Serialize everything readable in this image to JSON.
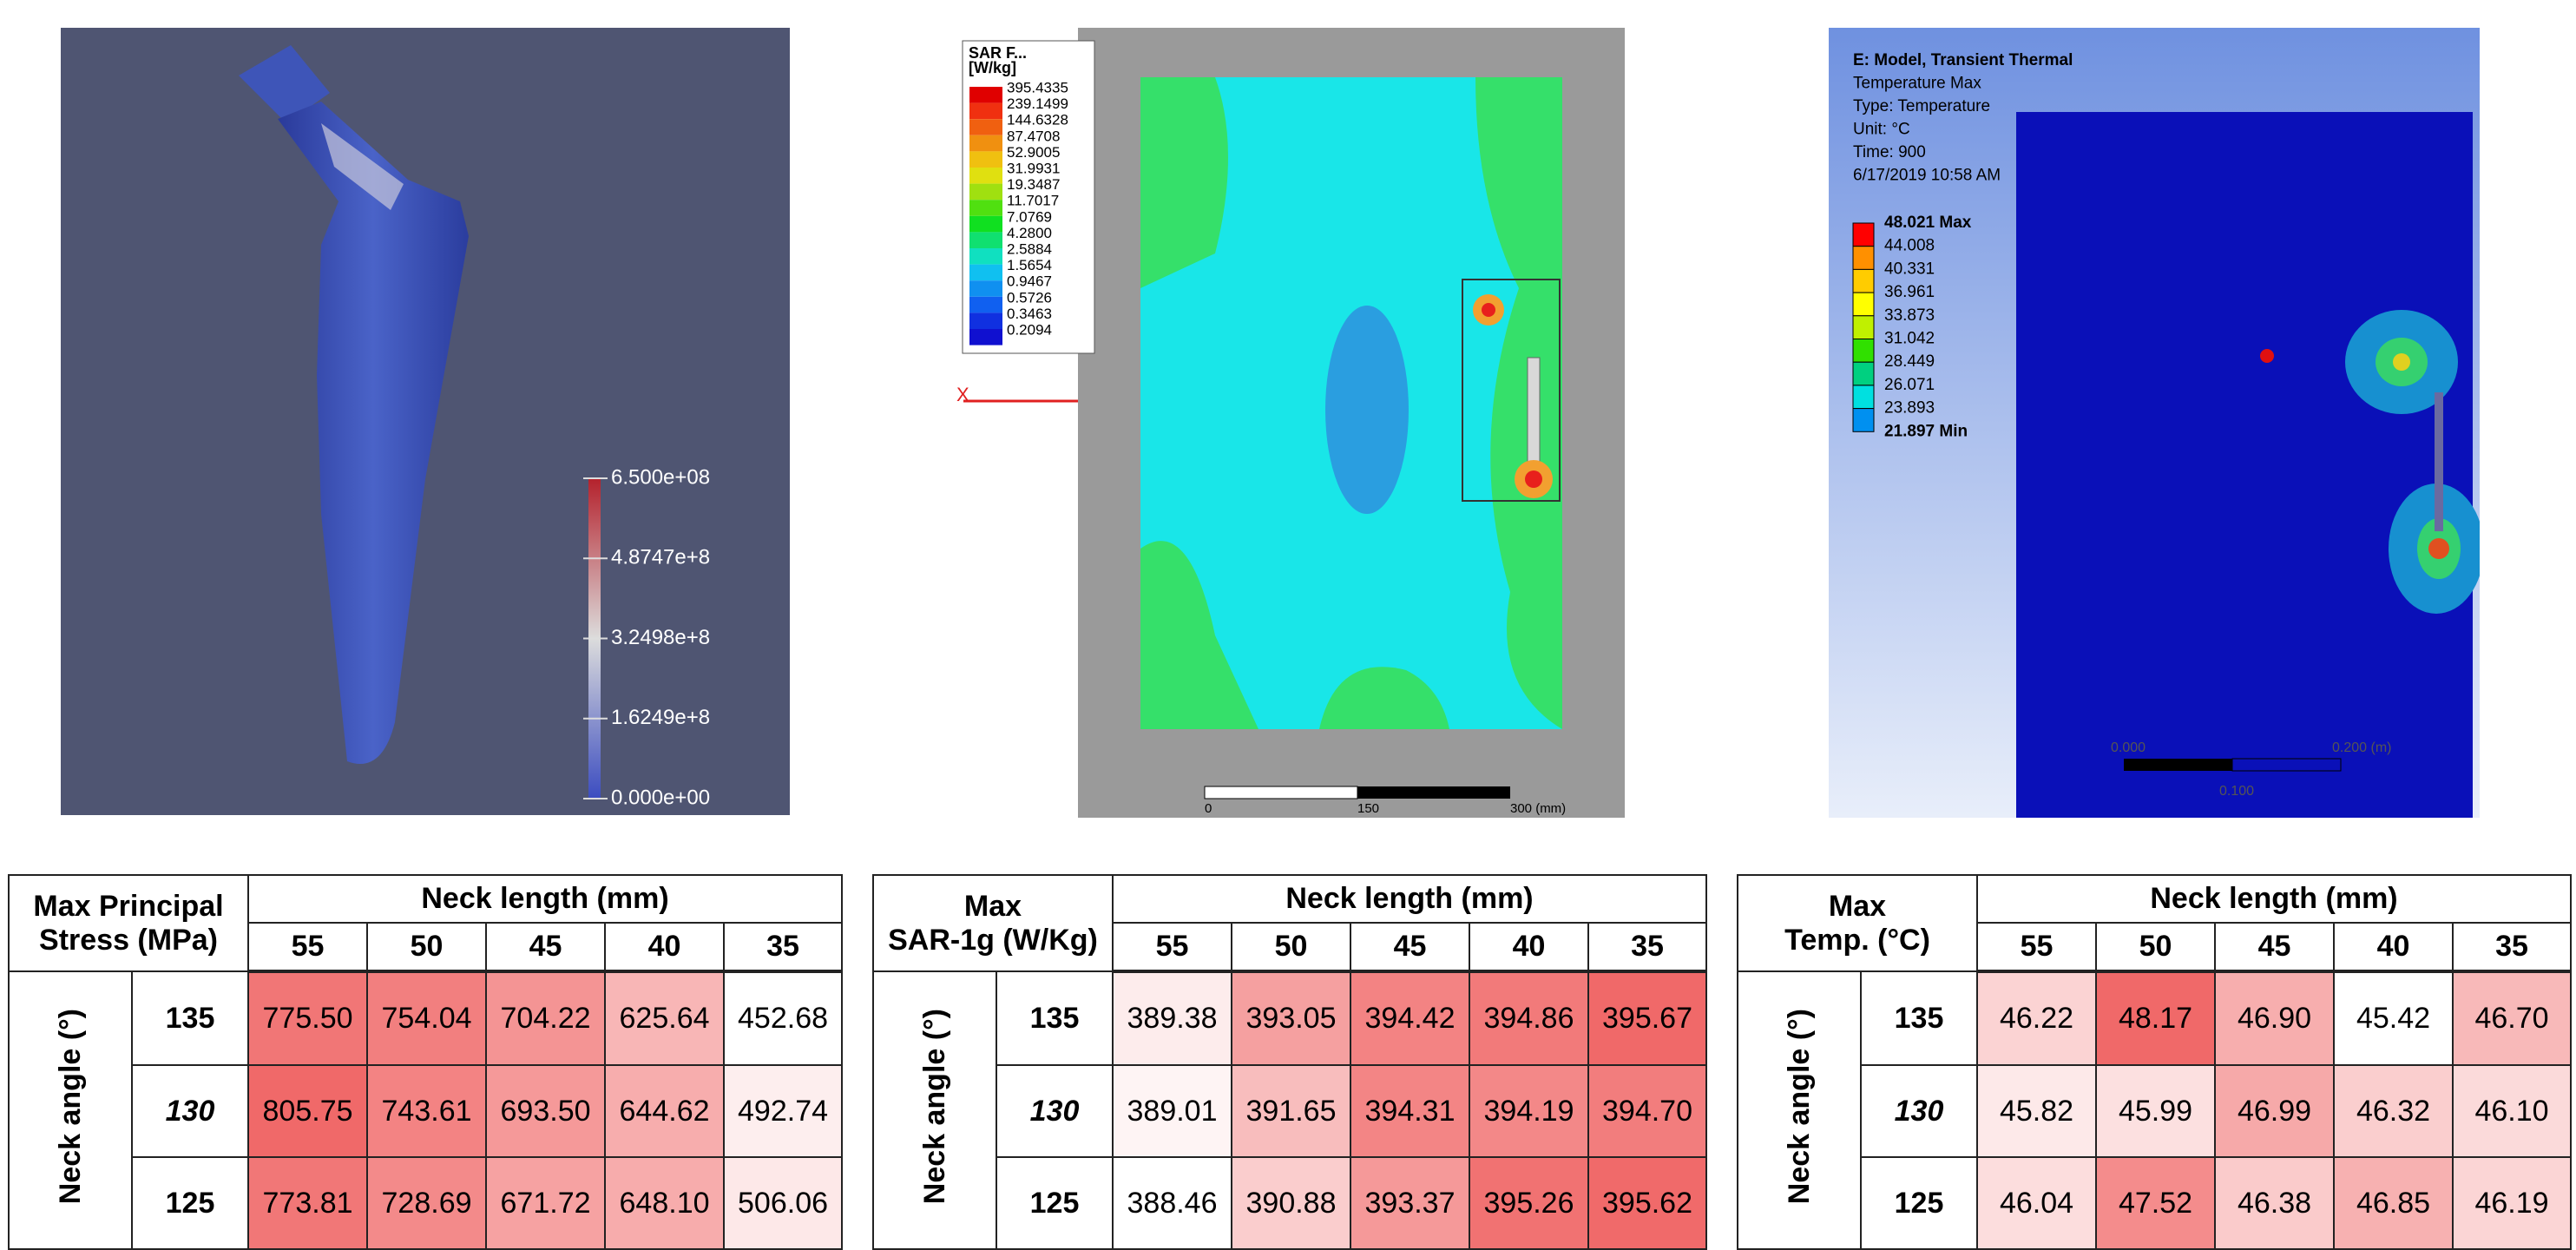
{
  "panels": [
    {
      "colorbar_labels": [
        "6.500e+08",
        "4.8747e+8",
        "3.2498e+8",
        "1.6249e+8",
        "0.000e+00"
      ]
    },
    {
      "legend_title": "SAR F...",
      "legend_unit": "[W/kg]",
      "legend_values": [
        "395.4335",
        "239.1499",
        "144.6328",
        "87.4708",
        "52.9005",
        "31.9931",
        "19.3487",
        "11.7017",
        "7.0769",
        "4.2800",
        "2.5884",
        "1.5654",
        "0.9467",
        "0.5726",
        "0.3463",
        "0.2094"
      ],
      "axis_label": "X",
      "scale_labels": [
        "0",
        "150",
        "300 (mm)"
      ]
    },
    {
      "header_lines": [
        "E: Model, Transient Thermal",
        "Temperature Max",
        "Type: Temperature",
        "Unit: °C",
        "Time: 900",
        "6/17/2019 10:58 AM"
      ],
      "legend_values": [
        "48.021 Max",
        "44.008",
        "40.331",
        "36.961",
        "33.873",
        "31.042",
        "28.449",
        "26.071",
        "23.893",
        "21.897 Min"
      ],
      "scale_labels": [
        "0.000",
        "0.200 (m)",
        "0.100"
      ]
    }
  ],
  "tables": [
    {
      "corner": [
        "Max Principal",
        "Stress (MPa)"
      ],
      "group_header": "Neck length (mm)",
      "columns": [
        "55",
        "50",
        "45",
        "40",
        "35"
      ],
      "row_group": "Neck angle (°)",
      "rows": [
        {
          "label": "135",
          "values": [
            "775.50",
            "754.04",
            "704.22",
            "625.64",
            "452.68"
          ]
        },
        {
          "label": "130",
          "values": [
            "805.75",
            "743.61",
            "693.50",
            "644.62",
            "492.74"
          ]
        },
        {
          "label": "125",
          "values": [
            "773.81",
            "728.69",
            "671.72",
            "648.10",
            "506.06"
          ]
        }
      ]
    },
    {
      "corner": [
        "Max",
        "SAR-1g (W/Kg)"
      ],
      "group_header": "Neck length (mm)",
      "columns": [
        "55",
        "50",
        "45",
        "40",
        "35"
      ],
      "row_group": "Neck angle (°)",
      "rows": [
        {
          "label": "135",
          "values": [
            "389.38",
            "393.05",
            "394.42",
            "394.86",
            "395.67"
          ]
        },
        {
          "label": "130",
          "values": [
            "389.01",
            "391.65",
            "394.31",
            "394.19",
            "394.70"
          ]
        },
        {
          "label": "125",
          "values": [
            "388.46",
            "390.88",
            "393.37",
            "395.26",
            "395.62"
          ]
        }
      ]
    },
    {
      "corner": [
        "Max",
        "Temp. (°C)"
      ],
      "group_header": "Neck length (mm)",
      "columns": [
        "55",
        "50",
        "45",
        "40",
        "35"
      ],
      "row_group": "Neck angle (°)",
      "rows": [
        {
          "label": "135",
          "values": [
            "46.22",
            "48.17",
            "46.90",
            "45.42",
            "46.70"
          ]
        },
        {
          "label": "130",
          "values": [
            "45.82",
            "45.99",
            "46.99",
            "46.32",
            "46.10"
          ]
        },
        {
          "label": "125",
          "values": [
            "46.04",
            "47.52",
            "46.38",
            "46.85",
            "46.19"
          ]
        }
      ]
    }
  ]
}
